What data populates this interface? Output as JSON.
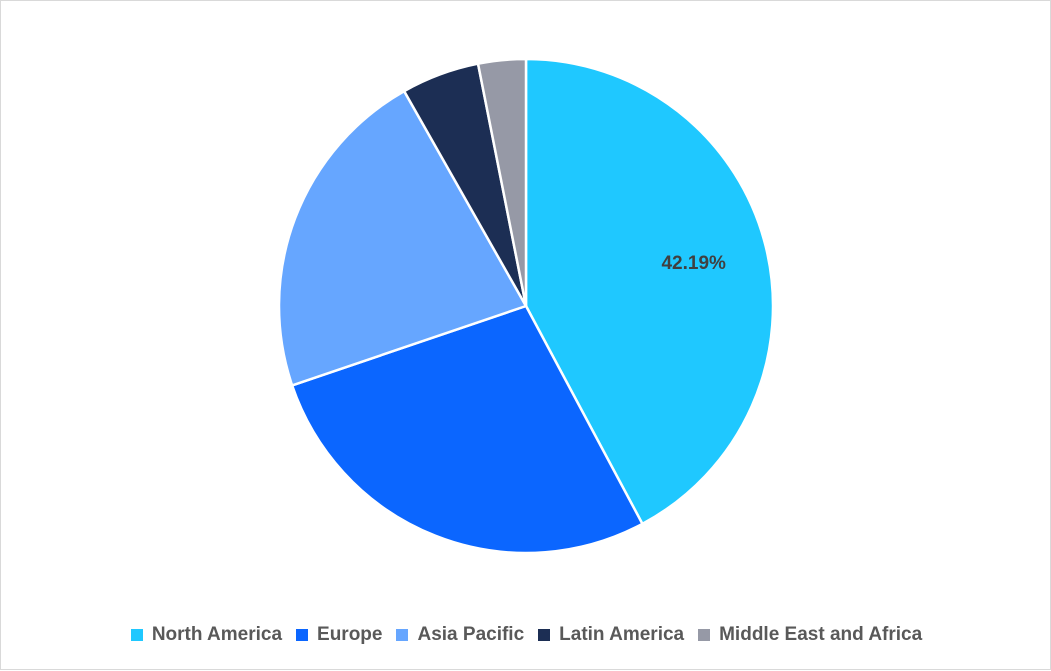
{
  "chart_data": {
    "type": "pie",
    "title": "",
    "legend_position": "bottom",
    "categories": [
      "North America",
      "Europe",
      "Asia Pacific",
      "Latin America",
      "Middle East and Africa"
    ],
    "values": [
      42.19,
      27.6,
      22.0,
      5.1,
      3.11
    ],
    "colors": [
      "#1fc8ff",
      "#0b66ff",
      "#66a6ff",
      "#1c2e54",
      "#9699a6"
    ],
    "data_labels": [
      {
        "category": "North America",
        "text": "42.19%"
      }
    ]
  }
}
